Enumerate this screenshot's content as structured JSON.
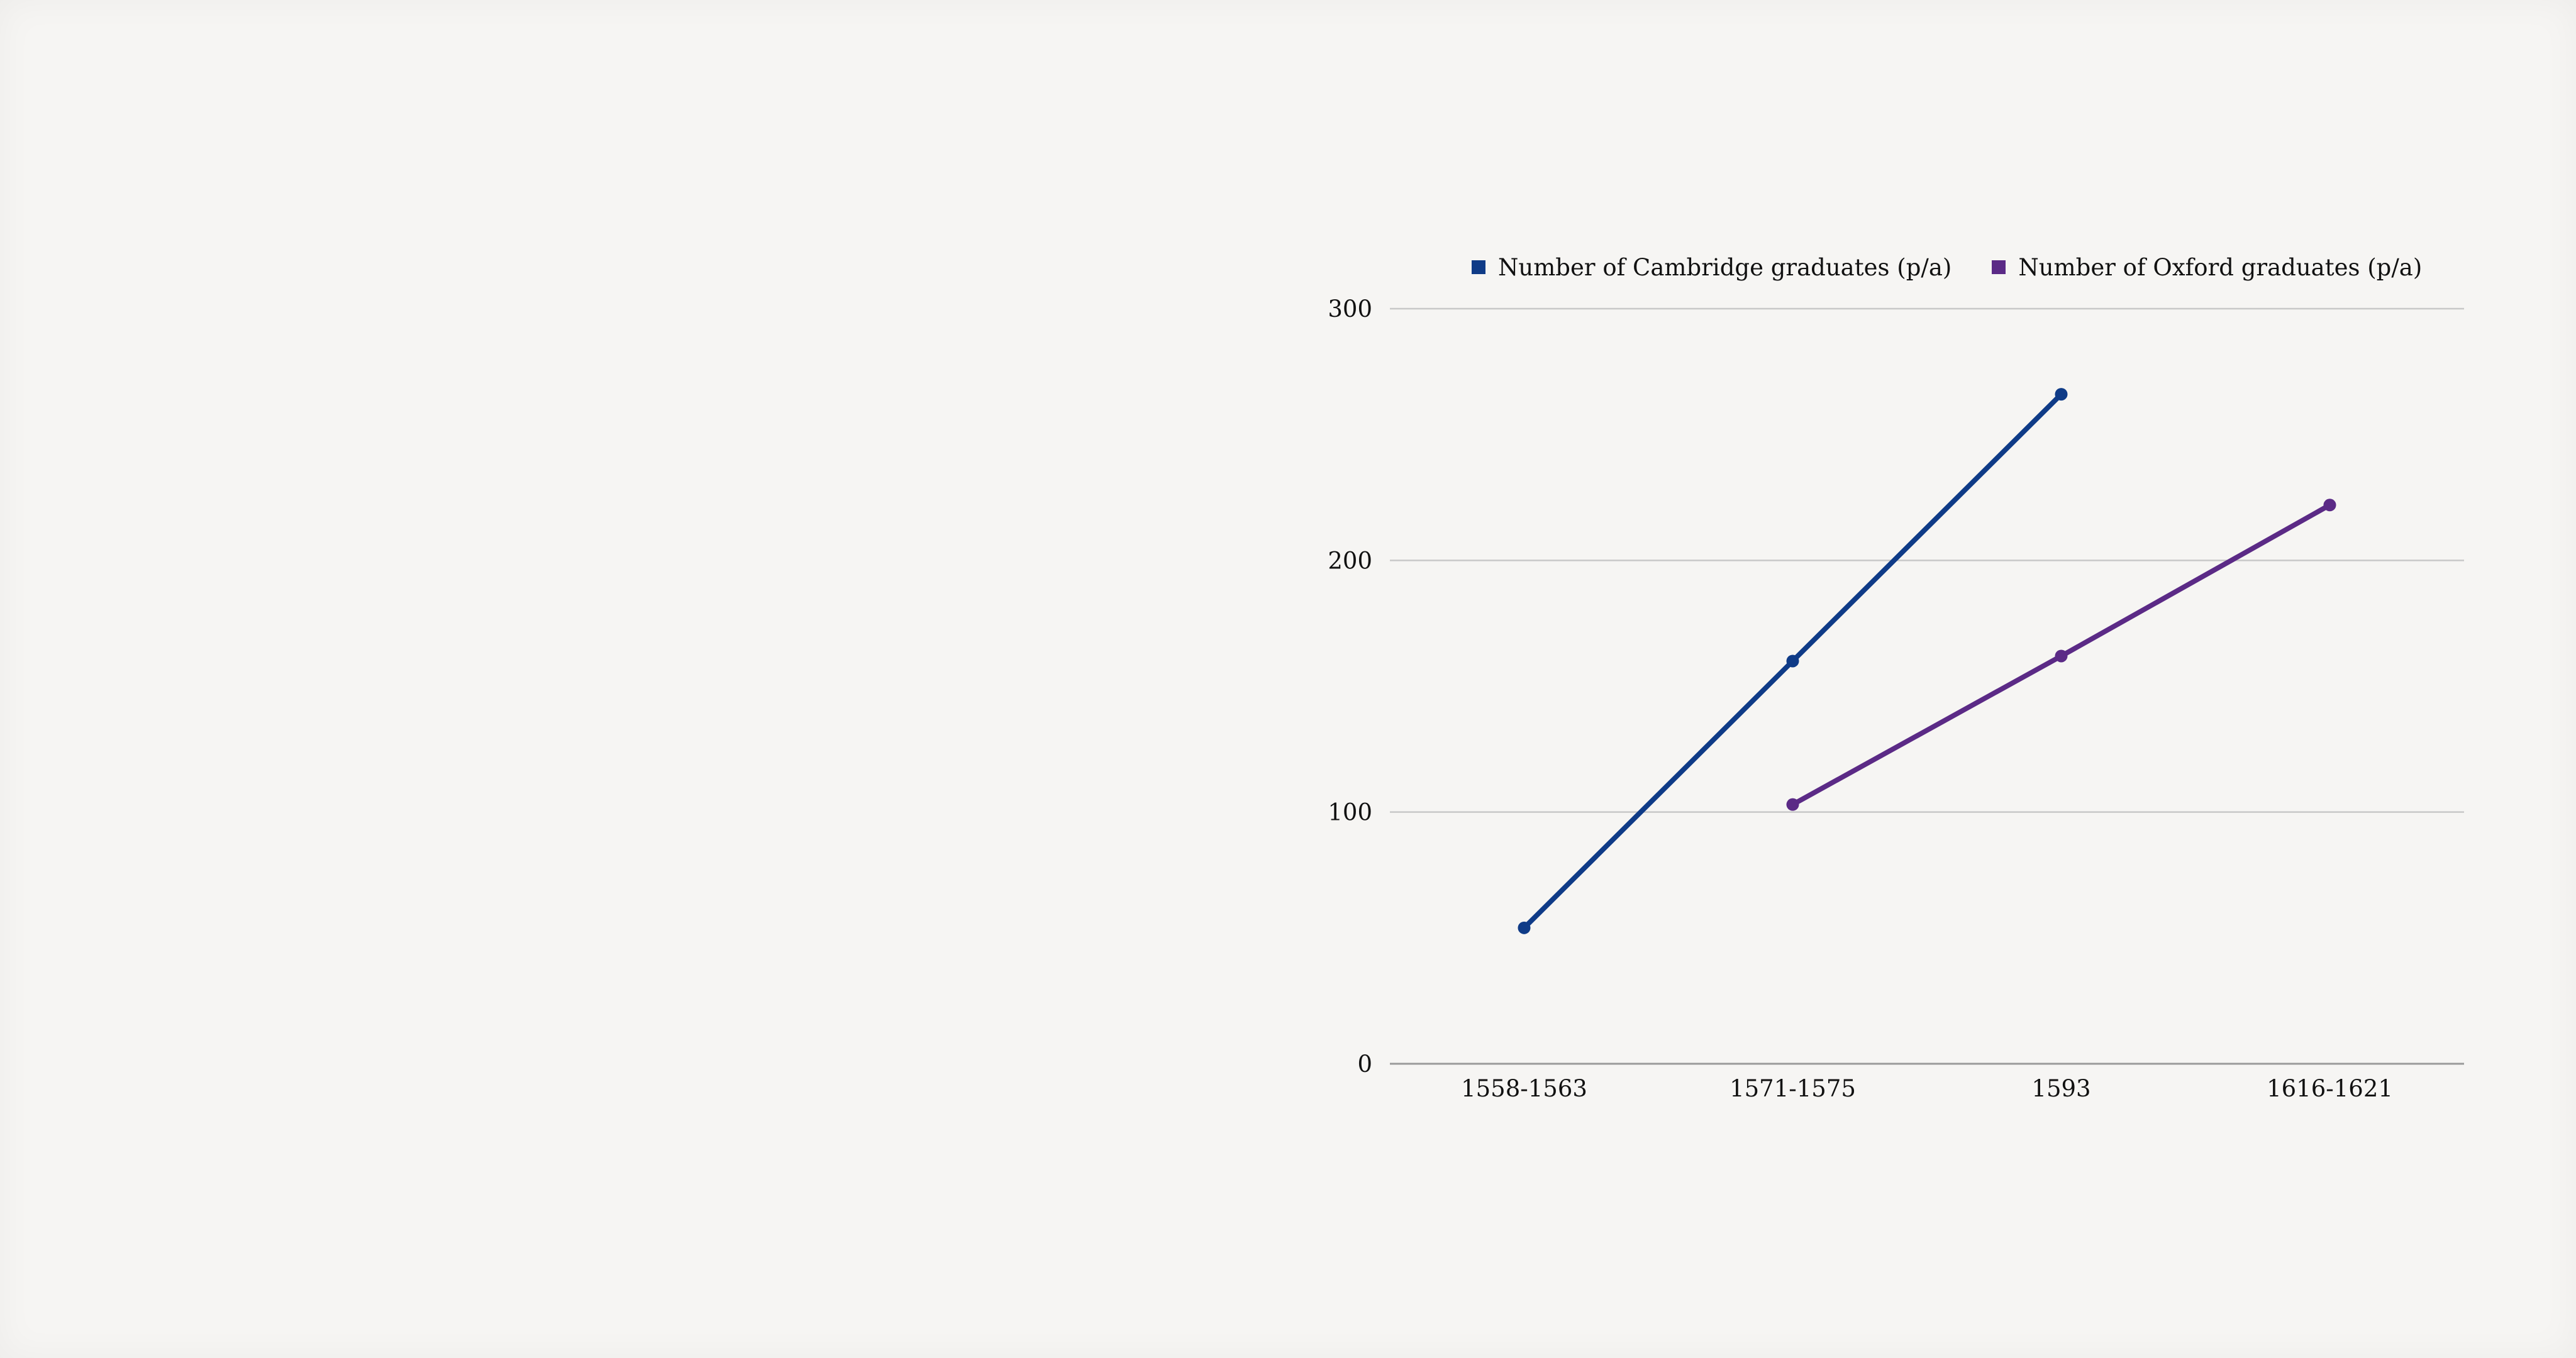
{
  "chart_data": {
    "type": "line",
    "categories": [
      "1558-1563",
      "1571-1575",
      "1593",
      "1616-1621"
    ],
    "series": [
      {
        "name": "Number of Cambridge graduates (p/a)",
        "color": "#0f3b87",
        "values": [
          54,
          160,
          266,
          null
        ]
      },
      {
        "name": "Number of Oxford graduates (p/a)",
        "color": "#5b2a86",
        "values": [
          null,
          103,
          162,
          222
        ]
      }
    ],
    "ylim": [
      0,
      300
    ],
    "yticks": [
      0,
      100,
      200,
      300
    ],
    "ytick_labels": [
      "0",
      "100",
      "200",
      "300"
    ],
    "grid": true,
    "legend_position": "top",
    "title": "",
    "xlabel": "",
    "ylabel": ""
  }
}
